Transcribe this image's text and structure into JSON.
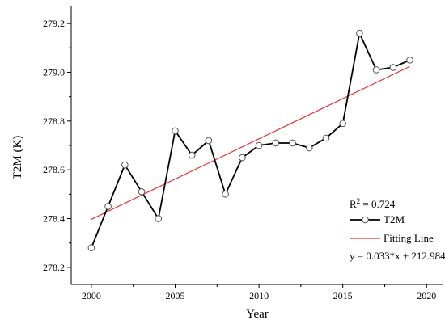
{
  "chart_data": {
    "type": "line",
    "xlabel": "Year",
    "ylabel": "T2M (K)",
    "xlim": [
      1998.8,
      2021.0
    ],
    "ylim": [
      278.13,
      279.27
    ],
    "x_ticks": [
      2000,
      2005,
      2010,
      2015,
      2020
    ],
    "y_ticks": [
      278.2,
      278.4,
      278.6,
      278.8,
      279.0,
      279.2
    ],
    "x_tick_labels": [
      "2000",
      "2005",
      "2010",
      "2015",
      "2020"
    ],
    "y_tick_labels": [
      "278.2",
      "278.4",
      "278.6",
      "278.8",
      "279.0",
      "279.2"
    ],
    "grid": false,
    "series": [
      {
        "name": "T2M",
        "style": "line-with-open-circles",
        "color": "#000000",
        "x": [
          2000,
          2001,
          2002,
          2003,
          2004,
          2005,
          2006,
          2007,
          2008,
          2009,
          2010,
          2011,
          2012,
          2013,
          2014,
          2015,
          2016,
          2017,
          2018,
          2019
        ],
        "y": [
          278.28,
          278.45,
          278.62,
          278.51,
          278.4,
          278.76,
          278.66,
          278.72,
          278.5,
          278.65,
          278.7,
          278.71,
          278.71,
          278.69,
          278.73,
          278.79,
          279.16,
          279.01,
          279.02,
          279.05
        ]
      },
      {
        "name": "Fitting Line",
        "style": "line",
        "color": "#e8302f",
        "x": [
          2000,
          2019
        ],
        "y": [
          278.397,
          279.024
        ]
      }
    ],
    "legend": {
      "position": "bottom-right",
      "r2_prefix": "R",
      "r2_superscript": "2",
      "r2_value": " = 0.724",
      "equation": "y = 0.033*x + 212.984"
    }
  }
}
